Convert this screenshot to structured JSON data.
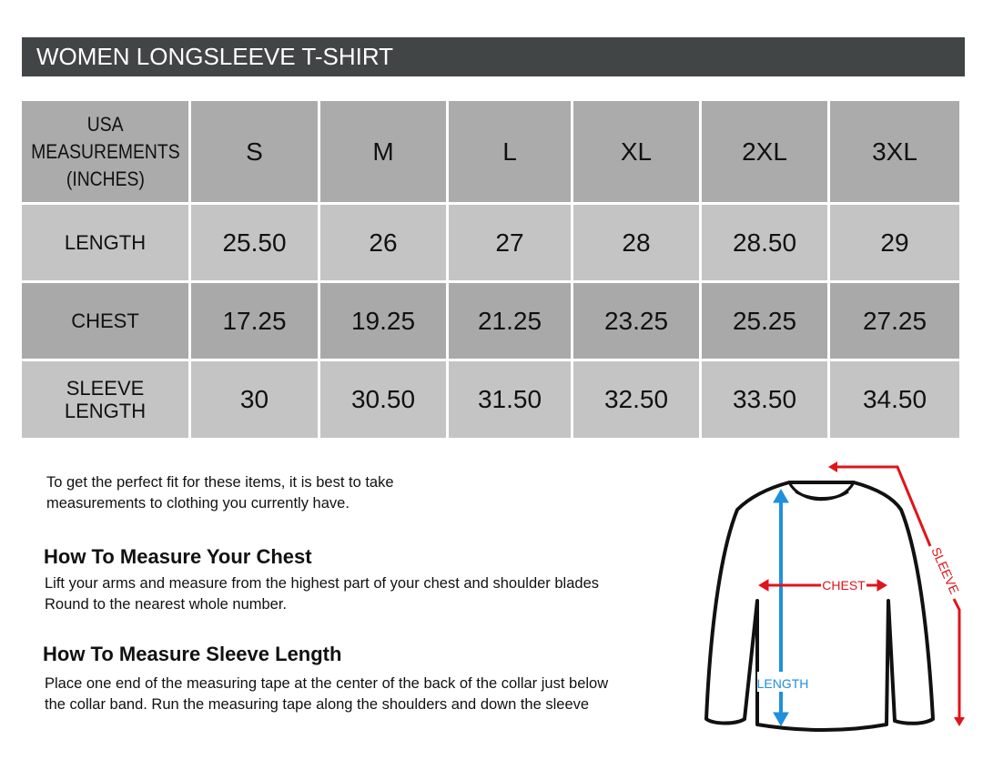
{
  "title": "WOMEN LONGSLEEVE T-SHIRT",
  "table": {
    "header_label": [
      "USA",
      "MEASUREMENTS",
      "(INCHES)"
    ],
    "sizes": [
      "S",
      "M",
      "L",
      "XL",
      "2XL",
      "3XL"
    ],
    "rows": [
      {
        "label": "LENGTH",
        "values": [
          "25.50",
          "26",
          "27",
          "28",
          "28.50",
          "29"
        ]
      },
      {
        "label": "CHEST",
        "values": [
          "17.25",
          "19.25",
          "21.25",
          "23.25",
          "25.25",
          "27.25"
        ]
      },
      {
        "label": "SLEEVE LENGTH",
        "values": [
          "30",
          "30.50",
          "31.50",
          "32.50",
          "33.50",
          "34.50"
        ]
      }
    ]
  },
  "intro": [
    "To get the perfect fit for these items, it is best to take",
    "measurements to clothing you currently have."
  ],
  "chest": {
    "heading": "How To Measure Your Chest",
    "lines": [
      "Lift your arms and measure from the highest part of your chest and shoulder blades",
      "Round to the nearest whole number."
    ]
  },
  "sleeve": {
    "heading": "How To Measure Sleeve Length",
    "lines": [
      "Place one end of the measuring tape at the center of the back of the collar just below",
      "the collar band. Run the measuring tape along the shoulders and down the sleeve"
    ]
  },
  "diagram": {
    "chest_label": "CHEST",
    "length_label": "LENGTH",
    "sleeve_label": "SLEEVE",
    "colors": {
      "red": "#e0141b",
      "blue": "#1e90dd"
    }
  }
}
